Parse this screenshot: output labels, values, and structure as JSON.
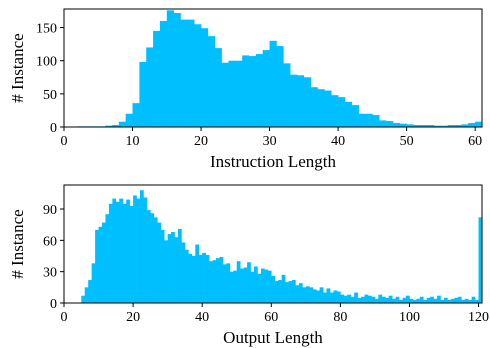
{
  "colors": {
    "bar": "#00bfff",
    "axis": "#000000",
    "background": "#ffffff"
  },
  "chart_data": [
    {
      "type": "bar",
      "xlabel": "Instruction Length",
      "ylabel": "# Instance",
      "xlim": [
        0,
        61
      ],
      "ylim": [
        0,
        178
      ],
      "xticks": [
        0,
        10,
        20,
        30,
        40,
        50,
        60
      ],
      "yticks": [
        0,
        50,
        100,
        150
      ],
      "bin_width": 1,
      "bin_starts": [
        2,
        3,
        4,
        5,
        6,
        7,
        8,
        9,
        10,
        11,
        12,
        13,
        14,
        15,
        16,
        17,
        18,
        19,
        20,
        21,
        22,
        23,
        24,
        25,
        26,
        27,
        28,
        29,
        30,
        31,
        32,
        33,
        34,
        35,
        36,
        37,
        38,
        39,
        40,
        41,
        42,
        43,
        44,
        45,
        46,
        47,
        48,
        49,
        50,
        51,
        52,
        53,
        54,
        55,
        56,
        57,
        58,
        59,
        60
      ],
      "values": [
        1,
        1,
        1,
        1,
        2,
        3,
        8,
        20,
        36,
        98,
        120,
        145,
        160,
        176,
        172,
        162,
        162,
        155,
        149,
        137,
        119,
        97,
        100,
        100,
        108,
        107,
        110,
        116,
        130,
        122,
        96,
        79,
        78,
        75,
        60,
        57,
        55,
        48,
        45,
        38,
        33,
        20,
        20,
        18,
        10,
        9,
        6,
        5,
        4,
        3,
        3,
        3,
        2,
        2,
        3,
        3,
        4,
        6,
        8
      ]
    },
    {
      "type": "bar",
      "xlabel": "Output Length",
      "ylabel": "# Instance",
      "xlim": [
        0,
        121
      ],
      "ylim": [
        0,
        113
      ],
      "xticks": [
        0,
        20,
        40,
        60,
        80,
        100,
        120
      ],
      "yticks": [
        0,
        30,
        60,
        90
      ],
      "bin_width": 1,
      "bin_starts": [
        5,
        6,
        7,
        8,
        9,
        10,
        11,
        12,
        13,
        14,
        15,
        16,
        17,
        18,
        19,
        20,
        21,
        22,
        23,
        24,
        25,
        26,
        27,
        28,
        29,
        30,
        31,
        32,
        33,
        34,
        35,
        36,
        37,
        38,
        39,
        40,
        41,
        42,
        43,
        44,
        45,
        46,
        47,
        48,
        49,
        50,
        51,
        52,
        53,
        54,
        55,
        56,
        57,
        58,
        59,
        60,
        61,
        62,
        63,
        64,
        65,
        66,
        67,
        68,
        69,
        70,
        71,
        72,
        73,
        74,
        75,
        76,
        77,
        78,
        79,
        80,
        81,
        82,
        83,
        84,
        85,
        86,
        87,
        88,
        89,
        90,
        91,
        92,
        93,
        94,
        95,
        96,
        97,
        98,
        99,
        100,
        101,
        102,
        103,
        104,
        105,
        106,
        107,
        108,
        109,
        110,
        111,
        112,
        113,
        114,
        115,
        116,
        117,
        118,
        119,
        120
      ],
      "values": [
        7,
        15,
        22,
        38,
        70,
        73,
        77,
        85,
        95,
        100,
        97,
        100,
        95,
        99,
        93,
        103,
        100,
        108,
        101,
        89,
        86,
        82,
        77,
        70,
        60,
        66,
        68,
        63,
        71,
        58,
        51,
        47,
        45,
        56,
        46,
        48,
        46,
        40,
        41,
        43,
        44,
        37,
        38,
        30,
        31,
        40,
        33,
        34,
        39,
        30,
        35,
        28,
        33,
        32,
        31,
        26,
        21,
        22,
        27,
        20,
        21,
        22,
        17,
        19,
        15,
        16,
        15,
        13,
        12,
        15,
        10,
        14,
        10,
        12,
        11,
        8,
        7,
        8,
        6,
        10,
        5,
        6,
        8,
        7,
        6,
        4,
        8,
        6,
        5,
        7,
        4,
        6,
        3,
        5,
        7,
        4,
        3,
        4,
        6,
        3,
        5,
        6,
        4,
        7,
        3,
        5,
        3,
        4,
        5,
        6,
        3,
        4,
        3,
        6,
        3,
        82
      ]
    }
  ]
}
